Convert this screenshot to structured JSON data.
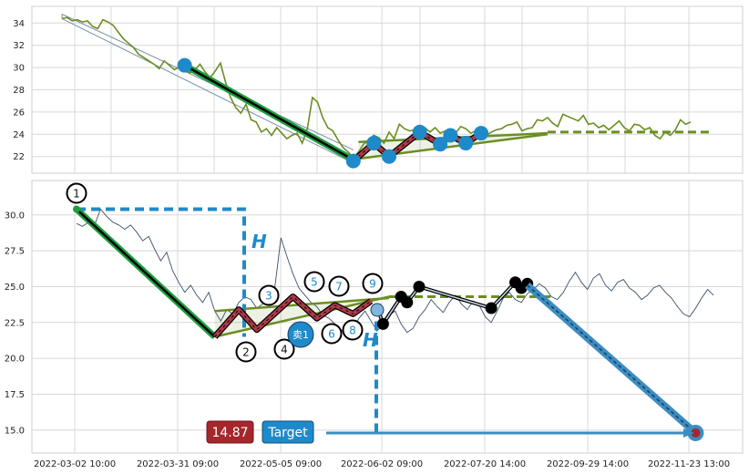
{
  "chart_data": [
    {
      "panel": "top",
      "type": "line",
      "ylim": [
        20.5,
        35.5
      ],
      "yticks": [
        22,
        24,
        26,
        28,
        30,
        32,
        34
      ],
      "grid": true,
      "series": [
        {
          "color": "#6b8e23",
          "values": [
            34.4,
            34.5,
            34.2,
            34.3,
            34.1,
            34.2,
            33.7,
            33.5,
            34.3,
            34.1,
            33.8,
            33.2,
            32.6,
            32.2,
            31.8,
            31.2,
            30.9,
            30.6,
            30.3,
            29.9,
            30.6,
            30.2,
            29.8,
            30.1,
            29.9,
            29.5,
            29.8,
            30.3,
            29.6,
            29.1,
            29.7,
            30.4,
            28.7,
            27.3,
            26.4,
            25.9,
            26.7,
            25.3,
            25.1,
            24.2,
            24.5,
            23.9,
            24.6,
            24.1,
            23.6,
            23.9,
            24.1,
            23.2,
            24.5,
            27.3,
            26.9,
            25.5,
            24.6,
            24.3,
            23.5,
            22.8,
            22.4,
            21.9,
            22.4,
            23.1,
            23.5,
            23.9,
            23.7,
            23.2,
            24.2,
            23.6,
            24.9,
            24.5,
            24.3,
            24.4,
            24.8,
            24.6,
            24.2,
            24.6,
            24.1,
            24.3,
            24.4,
            24.1,
            24.7,
            24.5,
            24.1,
            24.3,
            24.6,
            23.9,
            24.2,
            24.4,
            24.5,
            24.8,
            24.9,
            25.1,
            24.3,
            24.5,
            24.6,
            25.3,
            25.2,
            25.5,
            25.0,
            24.7,
            25.8,
            25.6,
            25.4,
            25.2,
            25.7,
            24.9,
            25.0,
            24.6,
            24.8,
            24.4,
            24.8,
            25.2,
            24.6,
            24.3,
            24.9,
            24.8,
            24.4,
            24.6,
            23.9,
            23.6,
            24.2,
            23.9,
            24.4,
            25.3,
            24.9,
            25.1
          ]
        }
      ],
      "overlay": {
        "channel_upper": [
          [
            0,
            34.8
          ],
          [
            57,
            22.6
          ]
        ],
        "channel_lower": [
          [
            0,
            34.4
          ],
          [
            57,
            21.4
          ]
        ],
        "trend_line": [
          [
            24,
            30.2
          ],
          [
            57,
            21.7
          ]
        ],
        "triangle_upper": [
          [
            58,
            23.3
          ],
          [
            95,
            24.1
          ]
        ],
        "triangle_lower": [
          [
            58,
            21.8
          ],
          [
            95,
            24.0
          ]
        ],
        "wave_markers": [
          [
            24,
            30.2
          ],
          [
            57,
            21.6
          ],
          [
            61,
            23.2
          ],
          [
            64,
            22.0
          ],
          [
            70,
            24.2
          ],
          [
            74,
            23.1
          ],
          [
            76,
            23.9
          ],
          [
            79,
            23.2
          ],
          [
            82,
            24.1
          ]
        ],
        "target_level": 24.2,
        "target_from_index": 95
      }
    },
    {
      "panel": "bottom",
      "type": "line",
      "ylim": [
        13.4,
        32.4
      ],
      "yticks": [
        "15.0",
        "17.5",
        "20.0",
        "22.5",
        "25.0",
        "27.5",
        "30.0"
      ],
      "xticks": [
        "2022-03-02 10:00",
        "2022-03-31 09:00",
        "2022-05-05 09:00",
        "2022-06-02 09:00",
        "2022-07-20 14:00",
        "2022-09-29 14:00",
        "2022-11-23 13:00"
      ],
      "grid": true,
      "series": [
        {
          "color": "#3b4f6a",
          "values": [
            29.4,
            29.2,
            29.5,
            29.3,
            30.4,
            29.9,
            29.5,
            29.3,
            29.0,
            29.3,
            28.8,
            28.2,
            28.5,
            27.6,
            26.8,
            27.4,
            26.1,
            25.3,
            24.6,
            25.1,
            24.4,
            23.9,
            24.6,
            23.3,
            22.6,
            23.4,
            23.1,
            23.9,
            24.3,
            24.1,
            23.5,
            23.8,
            24.5,
            25.0,
            28.4,
            27.1,
            25.9,
            24.9,
            24.4,
            23.9,
            23.6,
            23.0,
            22.8,
            22.4,
            22.0,
            21.6,
            22.1,
            22.8,
            23.3,
            22.6,
            21.9,
            22.4,
            23.0,
            23.3,
            22.4,
            21.8,
            22.1,
            22.9,
            23.4,
            24.1,
            23.6,
            23.2,
            23.9,
            24.4,
            23.8,
            23.4,
            24.0,
            23.7,
            22.9,
            22.5,
            23.3,
            24.2,
            24.6,
            24.1,
            23.9,
            24.5,
            24.8,
            25.2,
            24.9,
            24.3,
            24.1,
            24.6,
            25.4,
            26.0,
            25.3,
            24.8,
            25.6,
            25.9,
            25.1,
            24.7,
            25.3,
            25.5,
            24.9,
            24.6,
            24.1,
            24.4,
            24.9,
            25.1,
            24.6,
            24.2,
            23.6,
            23.1,
            22.9,
            23.5,
            24.2,
            24.8,
            24.4
          ]
        }
      ],
      "wave_points": [
        {
          "label": "1",
          "x": 0,
          "y": 30.4
        },
        {
          "label": "2",
          "x": 23,
          "y": 21.5
        },
        {
          "label": "3",
          "x": 27,
          "y": 23.4
        },
        {
          "label": "4",
          "x": 30,
          "y": 22.0
        },
        {
          "label": "5",
          "x": 36,
          "y": 24.3
        },
        {
          "label": "6",
          "x": 40,
          "y": 22.8
        },
        {
          "label": "7",
          "x": 43,
          "y": 23.7
        },
        {
          "label": "8",
          "x": 46,
          "y": 23.1
        },
        {
          "label": "9",
          "x": 49,
          "y": 24.0
        }
      ],
      "black_path": [
        [
          50,
          23.6
        ],
        [
          51,
          22.4
        ],
        [
          54,
          24.3
        ],
        [
          55,
          23.9
        ],
        [
          57,
          25.0
        ],
        [
          69,
          23.5
        ],
        [
          73,
          25.3
        ],
        [
          74,
          24.9
        ],
        [
          75,
          25.2
        ]
      ],
      "triangle_upper": [
        [
          23,
          23.3
        ],
        [
          52,
          24.2
        ]
      ],
      "triangle_lower": [
        [
          23,
          21.5
        ],
        [
          52,
          24.3
        ]
      ],
      "target_level": 24.3,
      "target_from_index": 52,
      "projection": [
        [
          75,
          25.1
        ],
        [
          103,
          14.8
        ]
      ],
      "height_marker": {
        "x": 23,
        "from": 30.4,
        "to": 21.5,
        "label": "H"
      },
      "height_marker_2": {
        "x": 50,
        "from": 23.6,
        "to": 14.8,
        "label": "H"
      },
      "sell_signal": {
        "x": 38,
        "y": 21.7,
        "label": "卖1"
      },
      "target_price": 14.87,
      "target_label": "Target",
      "target_line_y": 14.8
    }
  ],
  "colors": {
    "price_top": "#6b8e23",
    "price_bottom": "#3b4f6a",
    "impulse": "#1e9e3f",
    "zigzag": "#b03a48",
    "triangle": "#6b8e23",
    "marker": "#1f8ac9",
    "target_badge": "#a5262b",
    "target_label_bg": "#1f8ac9",
    "projection": "#3d8dc0"
  }
}
